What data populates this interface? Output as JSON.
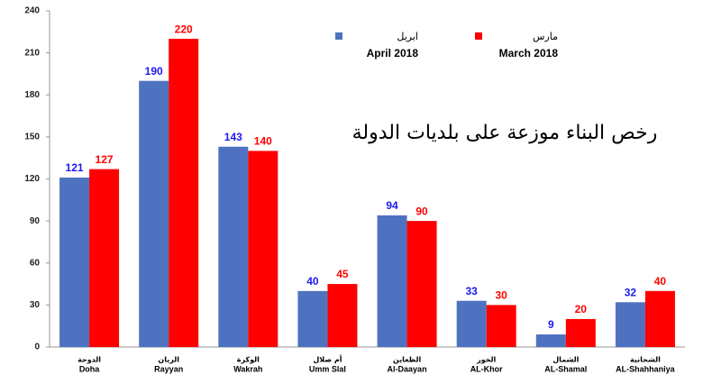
{
  "chart_data": {
    "type": "bar",
    "title": "رخص البناء موزعة على بلديات الدولة",
    "categories": [
      "Doha",
      "Rayyan",
      "Wakrah",
      "Umm Slal",
      "Al-Daayan",
      "AL-Khor",
      "AL-Shamal",
      "AL-Shahhaniya"
    ],
    "categories_ar": [
      "الدوحة",
      "الريان",
      "الوكرة",
      "أم صلال",
      "الظعاين",
      "الخور",
      "الشمال",
      "الشحانية"
    ],
    "series": [
      {
        "name": "April 2018",
        "name_ar": "ابريل",
        "color": "#4f72c0",
        "label_color": "#1a1aee",
        "values": [
          121,
          190,
          143,
          40,
          94,
          33,
          9,
          32
        ]
      },
      {
        "name": "March 2018",
        "name_ar": "مارس",
        "color": "#ff0000",
        "label_color": "#ff0000",
        "values": [
          127,
          220,
          140,
          45,
          90,
          30,
          20,
          40
        ]
      }
    ],
    "ylim": [
      0,
      240
    ],
    "yticks": [
      0,
      30,
      60,
      90,
      120,
      150,
      180,
      210,
      240
    ]
  }
}
